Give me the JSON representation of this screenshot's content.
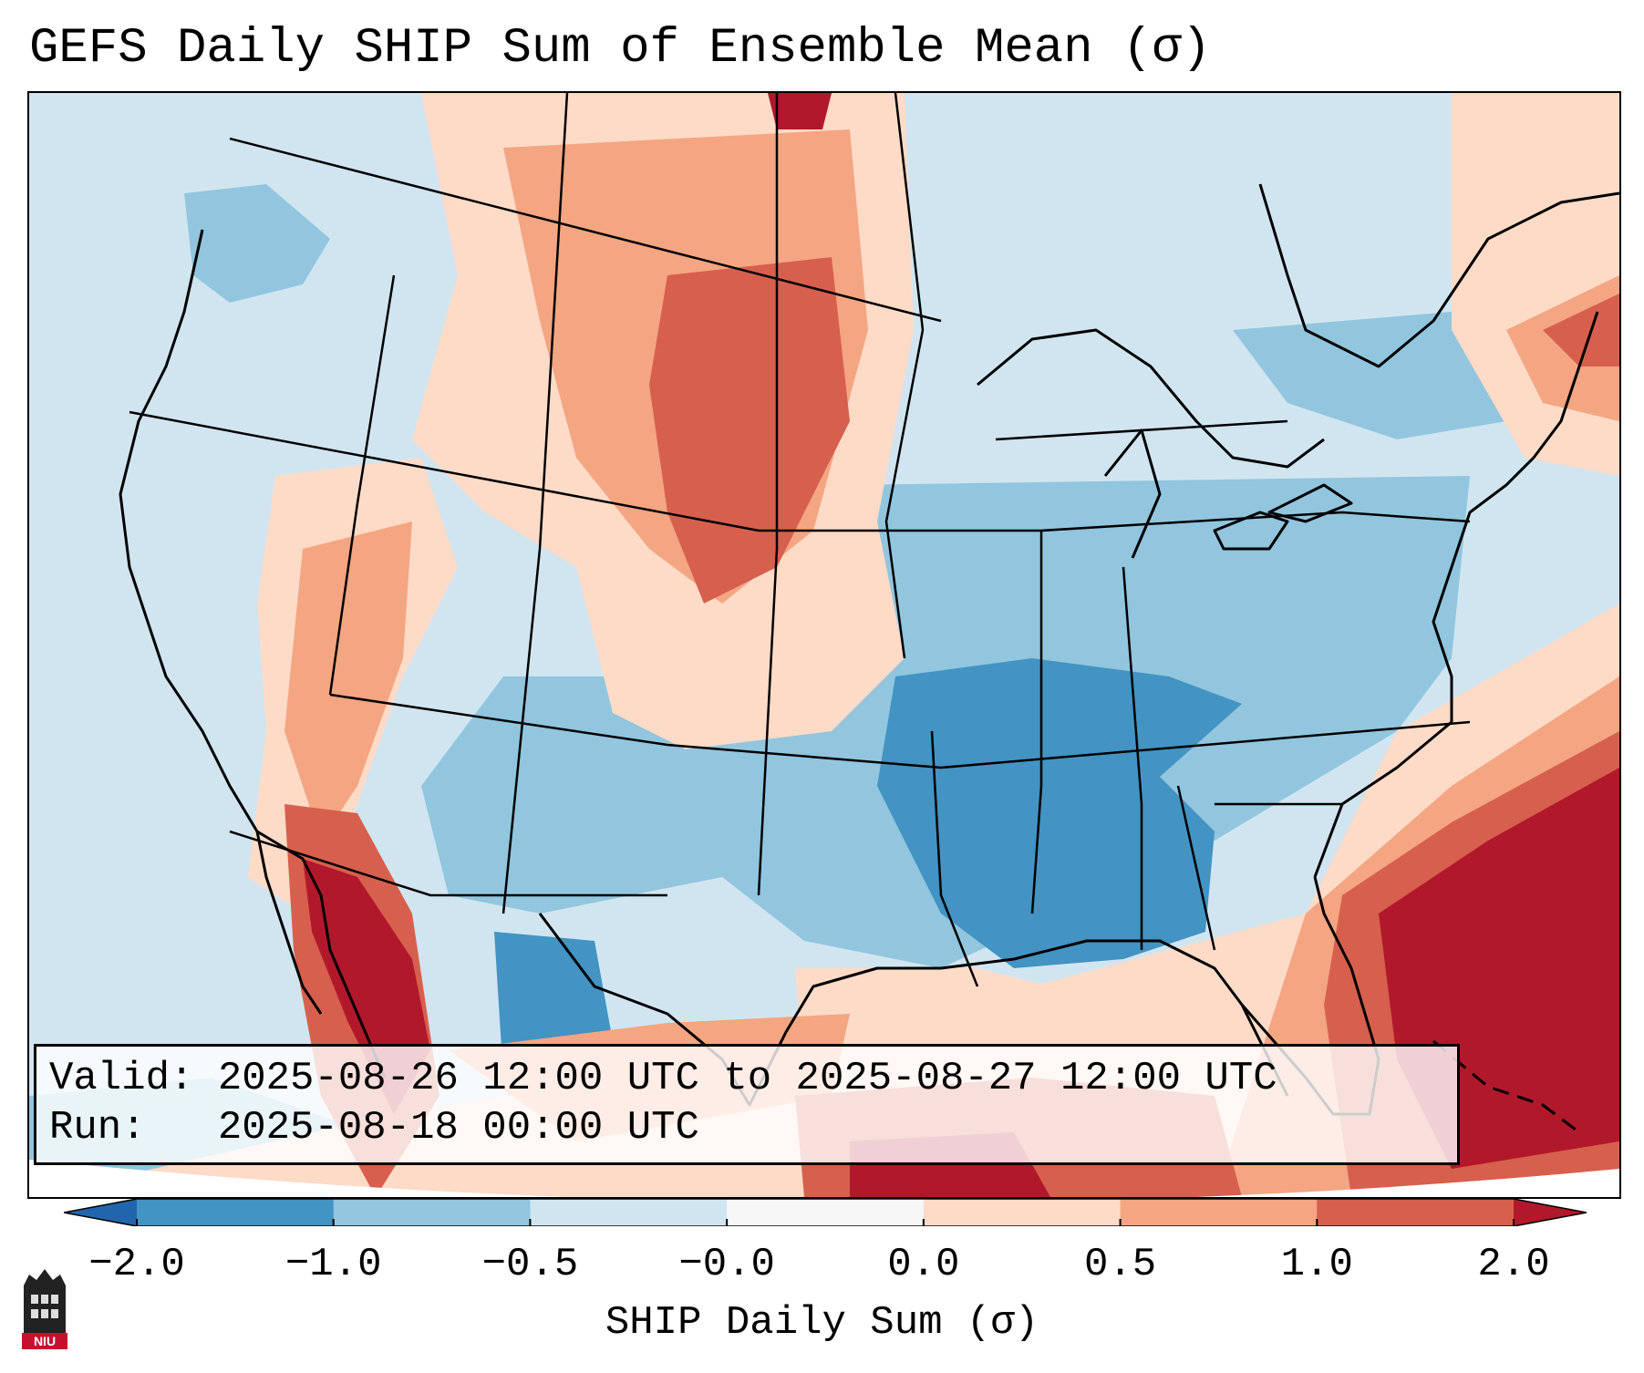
{
  "title": "GEFS Daily SHIP Sum of Ensemble Mean (σ)",
  "info_box": {
    "valid_label": "Valid:",
    "valid_value": "2025-08-26 12:00 UTC to 2025-08-27 12:00 UTC",
    "run_label": "Run:",
    "run_value": "2025-08-18 00:00 UTC"
  },
  "colorbar": {
    "label": "SHIP Daily Sum (σ)",
    "ticks": [
      "−2.0",
      "−1.0",
      "−0.5",
      "−0.0",
      "0.0",
      "0.5",
      "1.0",
      "2.0"
    ],
    "bins": [
      {
        "range": "< -2.0",
        "color": "#2166ac"
      },
      {
        "range": "-2.0 to -1.0",
        "color": "#4393c3"
      },
      {
        "range": "-1.0 to -0.5",
        "color": "#92c5de"
      },
      {
        "range": "-0.5 to -0.0",
        "color": "#d1e5f0"
      },
      {
        "range": "-0.0 to 0.0",
        "color": "#f7f7f7"
      },
      {
        "range": "0.0 to 0.5",
        "color": "#fddbc7"
      },
      {
        "range": "0.5 to 1.0",
        "color": "#f4a582"
      },
      {
        "range": "1.0 to 2.0",
        "color": "#d6604d"
      },
      {
        "range": "> 2.0",
        "color": "#b2182b"
      }
    ]
  },
  "logo": {
    "text": "NIU"
  }
}
